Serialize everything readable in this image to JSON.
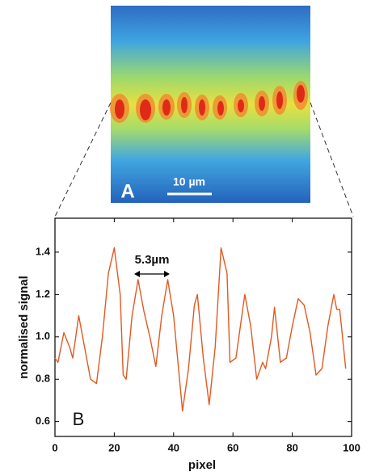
{
  "image": {
    "label": "A",
    "scale_bar": "10 µm"
  },
  "chart_data": {
    "type": "line",
    "panel_label": "B",
    "annotation": "5.3µm",
    "x_label": "pixel",
    "y_label": "normalised signal",
    "color": "#e05a20",
    "x": [
      0,
      1,
      3,
      5,
      6,
      8,
      10,
      12,
      14,
      16,
      18,
      20,
      22,
      23,
      24,
      26,
      28,
      30,
      32,
      34,
      36,
      38,
      40,
      42,
      43,
      45,
      47,
      48,
      50,
      52,
      54,
      56,
      58,
      59,
      61,
      63,
      64,
      66,
      68,
      70,
      71,
      73,
      74,
      76,
      78,
      80,
      82,
      84,
      86,
      88,
      90,
      92,
      94,
      95,
      96,
      98
    ],
    "values": [
      0.9,
      0.88,
      1.02,
      0.95,
      0.9,
      1.1,
      0.95,
      0.8,
      0.78,
      1.0,
      1.3,
      1.42,
      1.2,
      0.82,
      0.8,
      1.1,
      1.27,
      1.12,
      1.0,
      0.86,
      1.1,
      1.27,
      1.1,
      0.8,
      0.65,
      0.85,
      1.15,
      1.2,
      0.9,
      0.68,
      0.95,
      1.42,
      1.3,
      0.88,
      0.9,
      1.1,
      1.2,
      1.05,
      0.8,
      0.88,
      0.85,
      1.0,
      1.14,
      0.88,
      0.9,
      1.05,
      1.18,
      1.15,
      1.02,
      0.82,
      0.85,
      1.05,
      1.2,
      1.13,
      1.13,
      0.85
    ],
    "xlim": [
      0,
      100
    ],
    "xticks": [
      0,
      20,
      40,
      60,
      80,
      100
    ],
    "ylim": [
      0.53,
      1.56
    ],
    "yticks": [
      0.6,
      0.8,
      {
        "value": 1,
        "label": "1.0"
      },
      1.2,
      1.4
    ]
  }
}
